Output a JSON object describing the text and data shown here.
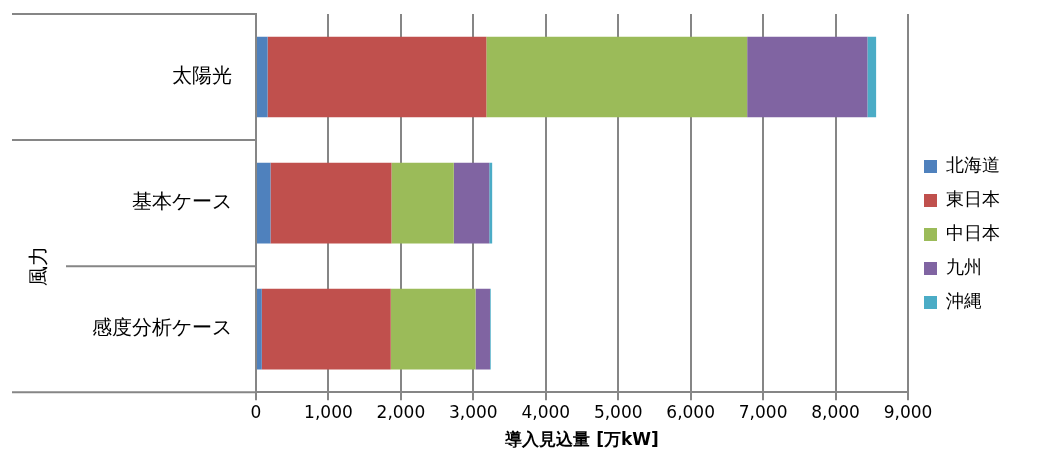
{
  "chart_data": {
    "type": "bar",
    "orientation": "horizontal",
    "stacked": true,
    "xlabel": "導入見込量 [万kW]",
    "categories": [
      "太陽光",
      "基本ケース",
      "感度分析ケース"
    ],
    "annotations": [
      "風力"
    ],
    "series": [
      {
        "name": "北海道",
        "color": "#4f81bd",
        "values": [
          160,
          200,
          80
        ]
      },
      {
        "name": "東日本",
        "color": "#c0504d",
        "values": [
          3020,
          1670,
          1780
        ]
      },
      {
        "name": "中日本",
        "color": "#9bbb59",
        "values": [
          3600,
          860,
          1170
        ]
      },
      {
        "name": "九州",
        "color": "#8064a2",
        "values": [
          1660,
          490,
          200
        ]
      },
      {
        "name": "沖縄",
        "color": "#4bacc6",
        "values": [
          120,
          40,
          10
        ]
      }
    ],
    "xlim": [
      0,
      9000
    ],
    "xticks": [
      {
        "value": 0,
        "label": "0"
      },
      {
        "value": 1000,
        "label": "1,000"
      },
      {
        "value": 2000,
        "label": "2,000"
      },
      {
        "value": 3000,
        "label": "3,000"
      },
      {
        "value": 4000,
        "label": "4,000"
      },
      {
        "value": 5000,
        "label": "5,000"
      },
      {
        "value": 6000,
        "label": "6,000"
      },
      {
        "value": 7000,
        "label": "7,000"
      },
      {
        "value": 8000,
        "label": "8,000"
      },
      {
        "value": 9000,
        "label": "9,000"
      }
    ],
    "grid": "x",
    "legend": "right"
  }
}
